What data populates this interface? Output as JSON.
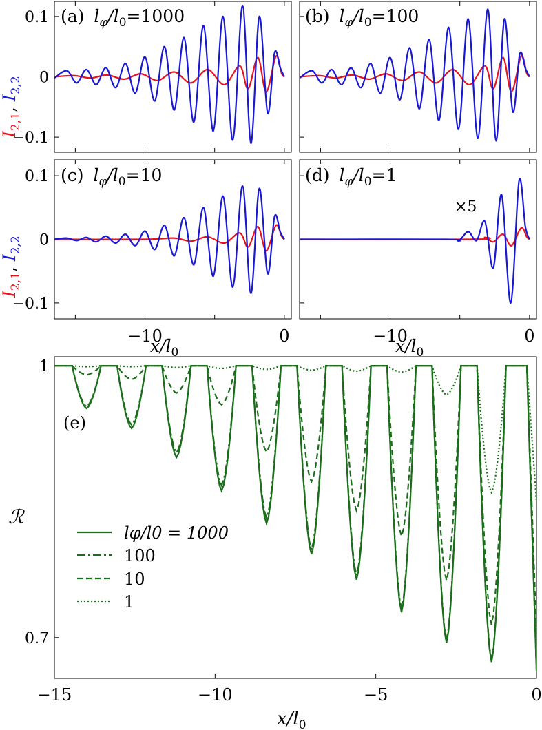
{
  "chart_data": [
    {
      "id": "a",
      "type": "line",
      "panel_label": "(a)",
      "label_var": "l",
      "label_sub": "φ",
      "label_mid": "/l",
      "label_sub2": "0",
      "label_val": "=1000",
      "xlim": [
        -16.5,
        0.5
      ],
      "ylim": [
        -0.125,
        0.125
      ],
      "yticks": [
        {
          "v": 0.1,
          "label": "0.1"
        },
        {
          "v": 0,
          "label": "0"
        },
        {
          "v": -0.1,
          "label": "−0.1"
        }
      ],
      "series": [
        {
          "name": "I2,1",
          "color": "#e8131a",
          "points": [
            [
              -16.5,
              0
            ],
            [
              -15.1,
              0.002
            ],
            [
              -13.9,
              -0.002
            ],
            [
              -12.7,
              0.003
            ],
            [
              -11.5,
              -0.004
            ],
            [
              -10.3,
              0.005
            ],
            [
              -9.1,
              -0.006
            ],
            [
              -7.9,
              0.008
            ],
            [
              -6.7,
              -0.01
            ],
            [
              -5.5,
              0.012
            ],
            [
              -4.3,
              -0.013
            ],
            [
              -3.2,
              0.018
            ],
            [
              -2.6,
              -0.02
            ],
            [
              -1.9,
              0.032
            ],
            [
              -1.3,
              -0.025
            ],
            [
              -0.6,
              0.034
            ],
            [
              -0.2,
              0.006
            ],
            [
              0,
              0
            ]
          ]
        },
        {
          "name": "I2,2",
          "color": "#1818d6",
          "points": [
            [
              -16.5,
              -0.002
            ],
            [
              -15.6,
              0.01
            ],
            [
              -14.9,
              -0.01
            ],
            [
              -14.2,
              0.012
            ],
            [
              -13.5,
              -0.013
            ],
            [
              -12.8,
              0.015
            ],
            [
              -12.1,
              -0.018
            ],
            [
              -11.4,
              0.022
            ],
            [
              -10.7,
              -0.027
            ],
            [
              -10.0,
              0.033
            ],
            [
              -9.3,
              -0.04
            ],
            [
              -8.6,
              0.05
            ],
            [
              -7.9,
              -0.055
            ],
            [
              -7.2,
              0.065
            ],
            [
              -6.5,
              -0.075
            ],
            [
              -5.8,
              0.085
            ],
            [
              -5.1,
              -0.09
            ],
            [
              -4.4,
              0.1
            ],
            [
              -3.7,
              -0.105
            ],
            [
              -3.0,
              0.118
            ],
            [
              -2.4,
              -0.11
            ],
            [
              -1.8,
              0.1
            ],
            [
              -1.2,
              -0.06
            ],
            [
              -0.7,
              0.04
            ],
            [
              -0.3,
              0.015
            ],
            [
              0,
              0
            ]
          ]
        }
      ]
    },
    {
      "id": "b",
      "type": "line",
      "panel_label": "(b)",
      "label_var": "l",
      "label_sub": "φ",
      "label_mid": "/l",
      "label_sub2": "0",
      "label_val": "=100",
      "xlim": [
        -16.5,
        0.5
      ],
      "ylim": [
        -0.125,
        0.125
      ],
      "yticks": [],
      "series": [
        {
          "name": "I2,1",
          "color": "#e8131a",
          "points": [
            [
              -16.5,
              0
            ],
            [
              -15.1,
              0.002
            ],
            [
              -13.9,
              -0.002
            ],
            [
              -12.7,
              0.003
            ],
            [
              -11.5,
              -0.004
            ],
            [
              -10.3,
              0.005
            ],
            [
              -9.1,
              -0.006
            ],
            [
              -7.9,
              0.008
            ],
            [
              -6.7,
              -0.01
            ],
            [
              -5.5,
              0.012
            ],
            [
              -4.3,
              -0.013
            ],
            [
              -3.2,
              0.018
            ],
            [
              -2.6,
              -0.02
            ],
            [
              -1.9,
              0.032
            ],
            [
              -1.3,
              -0.025
            ],
            [
              -0.6,
              0.034
            ],
            [
              -0.2,
              0.006
            ],
            [
              0,
              0
            ]
          ]
        },
        {
          "name": "I2,2",
          "color": "#1818d6",
          "points": [
            [
              -16.5,
              -0.002
            ],
            [
              -15.6,
              0.01
            ],
            [
              -14.9,
              -0.01
            ],
            [
              -14.2,
              0.012
            ],
            [
              -13.5,
              -0.013
            ],
            [
              -12.8,
              0.015
            ],
            [
              -12.1,
              -0.018
            ],
            [
              -11.4,
              0.022
            ],
            [
              -10.7,
              -0.027
            ],
            [
              -10.0,
              0.032
            ],
            [
              -9.3,
              -0.038
            ],
            [
              -8.6,
              0.048
            ],
            [
              -7.9,
              -0.053
            ],
            [
              -7.2,
              0.062
            ],
            [
              -6.5,
              -0.072
            ],
            [
              -5.8,
              0.082
            ],
            [
              -5.1,
              -0.087
            ],
            [
              -4.4,
              0.096
            ],
            [
              -3.7,
              -0.102
            ],
            [
              -3.0,
              0.112
            ],
            [
              -2.4,
              -0.106
            ],
            [
              -1.8,
              0.096
            ],
            [
              -1.2,
              -0.058
            ],
            [
              -0.7,
              0.038
            ],
            [
              -0.3,
              0.014
            ],
            [
              0,
              0
            ]
          ]
        }
      ]
    },
    {
      "id": "c",
      "type": "line",
      "panel_label": "(c)",
      "label_var": "l",
      "label_sub": "φ",
      "label_mid": "/l",
      "label_sub2": "0",
      "label_val": "=10",
      "xlim": [
        -16.5,
        0.5
      ],
      "ylim": [
        -0.125,
        0.125
      ],
      "yticks": [
        {
          "v": 0.1,
          "label": "0.1"
        },
        {
          "v": 0,
          "label": "0"
        },
        {
          "v": -0.1,
          "label": "−0.1"
        }
      ],
      "xticks": [
        {
          "v": -10,
          "label": "−10"
        },
        {
          "v": 0,
          "label": "0"
        }
      ],
      "series": [
        {
          "name": "I2,1",
          "color": "#e8131a",
          "points": [
            [
              -16.5,
              0
            ],
            [
              -10,
              0
            ],
            [
              -7.9,
              0.002
            ],
            [
              -6.7,
              -0.003
            ],
            [
              -5.5,
              0.004
            ],
            [
              -4.3,
              -0.006
            ],
            [
              -3.2,
              0.01
            ],
            [
              -2.6,
              -0.012
            ],
            [
              -1.9,
              0.02
            ],
            [
              -1.3,
              -0.018
            ],
            [
              -0.6,
              0.022
            ],
            [
              -0.2,
              0.005
            ],
            [
              0,
              0
            ]
          ]
        },
        {
          "name": "I2,2",
          "color": "#1818d6",
          "points": [
            [
              -16.5,
              0
            ],
            [
              -15.6,
              0.002
            ],
            [
              -14.9,
              -0.002
            ],
            [
              -14.2,
              0.003
            ],
            [
              -13.5,
              -0.004
            ],
            [
              -12.8,
              0.005
            ],
            [
              -12.1,
              -0.006
            ],
            [
              -11.4,
              0.008
            ],
            [
              -10.7,
              -0.01
            ],
            [
              -10.0,
              0.013
            ],
            [
              -9.3,
              -0.016
            ],
            [
              -8.6,
              0.022
            ],
            [
              -7.9,
              -0.026
            ],
            [
              -7.2,
              0.034
            ],
            [
              -6.5,
              -0.04
            ],
            [
              -5.8,
              0.05
            ],
            [
              -5.1,
              -0.058
            ],
            [
              -4.4,
              0.068
            ],
            [
              -3.7,
              -0.075
            ],
            [
              -3.0,
              0.084
            ],
            [
              -2.4,
              -0.085
            ],
            [
              -1.8,
              0.08
            ],
            [
              -1.2,
              -0.054
            ],
            [
              -0.7,
              0.036
            ],
            [
              -0.3,
              0.012
            ],
            [
              0,
              0
            ]
          ]
        }
      ]
    },
    {
      "id": "d",
      "type": "line",
      "panel_label": "(d)",
      "label_var": "l",
      "label_sub": "φ",
      "label_mid": "/l",
      "label_sub2": "0",
      "label_val": "=1",
      "annotation": "×5",
      "xlim": [
        -16.5,
        0.5
      ],
      "ylim": [
        -0.125,
        0.125
      ],
      "yticks": [],
      "xticks": [
        {
          "v": -10,
          "label": "−10"
        },
        {
          "v": 0,
          "label": "0"
        }
      ],
      "series": [
        {
          "name": "I2,1",
          "color": "#e8131a",
          "points": [
            [
              -16.5,
              0
            ],
            [
              -4,
              0
            ],
            [
              -3.2,
              0.003
            ],
            [
              -2.6,
              -0.004
            ],
            [
              -1.9,
              0.008
            ],
            [
              -1.3,
              -0.01
            ],
            [
              -0.6,
              0.018
            ],
            [
              -0.2,
              0.004
            ],
            [
              0,
              0
            ]
          ]
        },
        {
          "name": "I2,2",
          "color": "#1818d6",
          "points": [
            [
              -16.5,
              0
            ],
            [
              -6,
              0
            ],
            [
              -5.1,
              -0.002
            ],
            [
              -4.4,
              0.012
            ],
            [
              -3.8,
              -0.002
            ],
            [
              -3.2,
              0.028
            ],
            [
              -2.6,
              -0.045
            ],
            [
              -2.0,
              0.07
            ],
            [
              -1.35,
              -0.1
            ],
            [
              -0.75,
              0.092
            ],
            [
              -0.3,
              0.02
            ],
            [
              0,
              0
            ]
          ]
        }
      ]
    },
    {
      "id": "e",
      "type": "line",
      "panel_label": "(e)",
      "ylabel": "ℛ",
      "xlim": [
        -15,
        0
      ],
      "ylim": [
        0.655,
        1.01
      ],
      "yticks": [
        {
          "v": 1,
          "label": "1"
        },
        {
          "v": 0.7,
          "label": "0.7"
        }
      ],
      "xticks": [
        {
          "v": -15,
          "label": "−15"
        },
        {
          "v": -10,
          "label": "−10"
        },
        {
          "v": -5,
          "label": "−5"
        },
        {
          "v": 0,
          "label": "0"
        }
      ],
      "legend_position": "center-left",
      "series": [
        {
          "name": "lφ/l0 = 1000",
          "dash": "solid",
          "color": "#1a6e1a",
          "troughs": [
            [
              -14.0,
              0.953
            ],
            [
              -12.6,
              0.931
            ],
            [
              -11.2,
              0.899
            ],
            [
              -9.8,
              0.862
            ],
            [
              -8.4,
              0.826
            ],
            [
              -7.0,
              0.792
            ],
            [
              -5.6,
              0.764
            ],
            [
              -4.2,
              0.728
            ],
            [
              -2.8,
              0.694
            ],
            [
              -1.4,
              0.673
            ]
          ]
        },
        {
          "name": "100",
          "dash": "dashdot",
          "color": "#1a6e1a",
          "troughs": [
            [
              -14.0,
              0.955
            ],
            [
              -12.6,
              0.935
            ],
            [
              -11.2,
              0.904
            ],
            [
              -9.8,
              0.868
            ],
            [
              -8.4,
              0.832
            ],
            [
              -7.0,
              0.797
            ],
            [
              -5.6,
              0.769
            ],
            [
              -4.2,
              0.732
            ],
            [
              -2.8,
              0.697
            ],
            [
              -1.4,
              0.675
            ]
          ]
        },
        {
          "name": "10",
          "dash": "dashed",
          "color": "#1a6e1a",
          "troughs": [
            [
              -14.0,
              0.99
            ],
            [
              -12.6,
              0.985
            ],
            [
              -11.2,
              0.97
            ],
            [
              -9.8,
              0.957
            ],
            [
              -8.4,
              0.905
            ],
            [
              -7.0,
              0.872
            ],
            [
              -5.6,
              0.84
            ],
            [
              -4.2,
              0.812
            ],
            [
              -2.8,
              0.763
            ],
            [
              -1.4,
              0.714
            ]
          ]
        },
        {
          "name": "1",
          "dash": "dotted",
          "color": "#1a6e1a",
          "troughs": [
            [
              -14.0,
              0.999
            ],
            [
              -12.6,
              0.999
            ],
            [
              -11.2,
              0.998
            ],
            [
              -9.8,
              0.997
            ],
            [
              -8.4,
              0.996
            ],
            [
              -7.0,
              0.995
            ],
            [
              -5.6,
              0.994
            ],
            [
              -4.2,
              0.993
            ],
            [
              -2.8,
              0.968
            ],
            [
              -1.4,
              0.86
            ]
          ]
        }
      ]
    }
  ],
  "figure": {
    "ylabel_top_left": {
      "part1": "I",
      "sub1": "2,1",
      "comma": ", ",
      "part2": "I",
      "sub2": "2,2"
    },
    "ylabel_mid_left": {
      "part1": "I",
      "sub1": "2,1",
      "comma": ", ",
      "part2": "I",
      "sub2": "2,2"
    },
    "xlabel_left": {
      "var": "x",
      "mid": "/l",
      "sub": "0"
    },
    "xlabel_right": {
      "var": "x",
      "mid": "/l",
      "sub": "0"
    },
    "xlabel_bottom": {
      "var": "x",
      "mid": "/l",
      "sub": "0"
    },
    "colors": {
      "red": "#e8131a",
      "blue": "#1818d6",
      "green": "#1a6e1a"
    }
  }
}
